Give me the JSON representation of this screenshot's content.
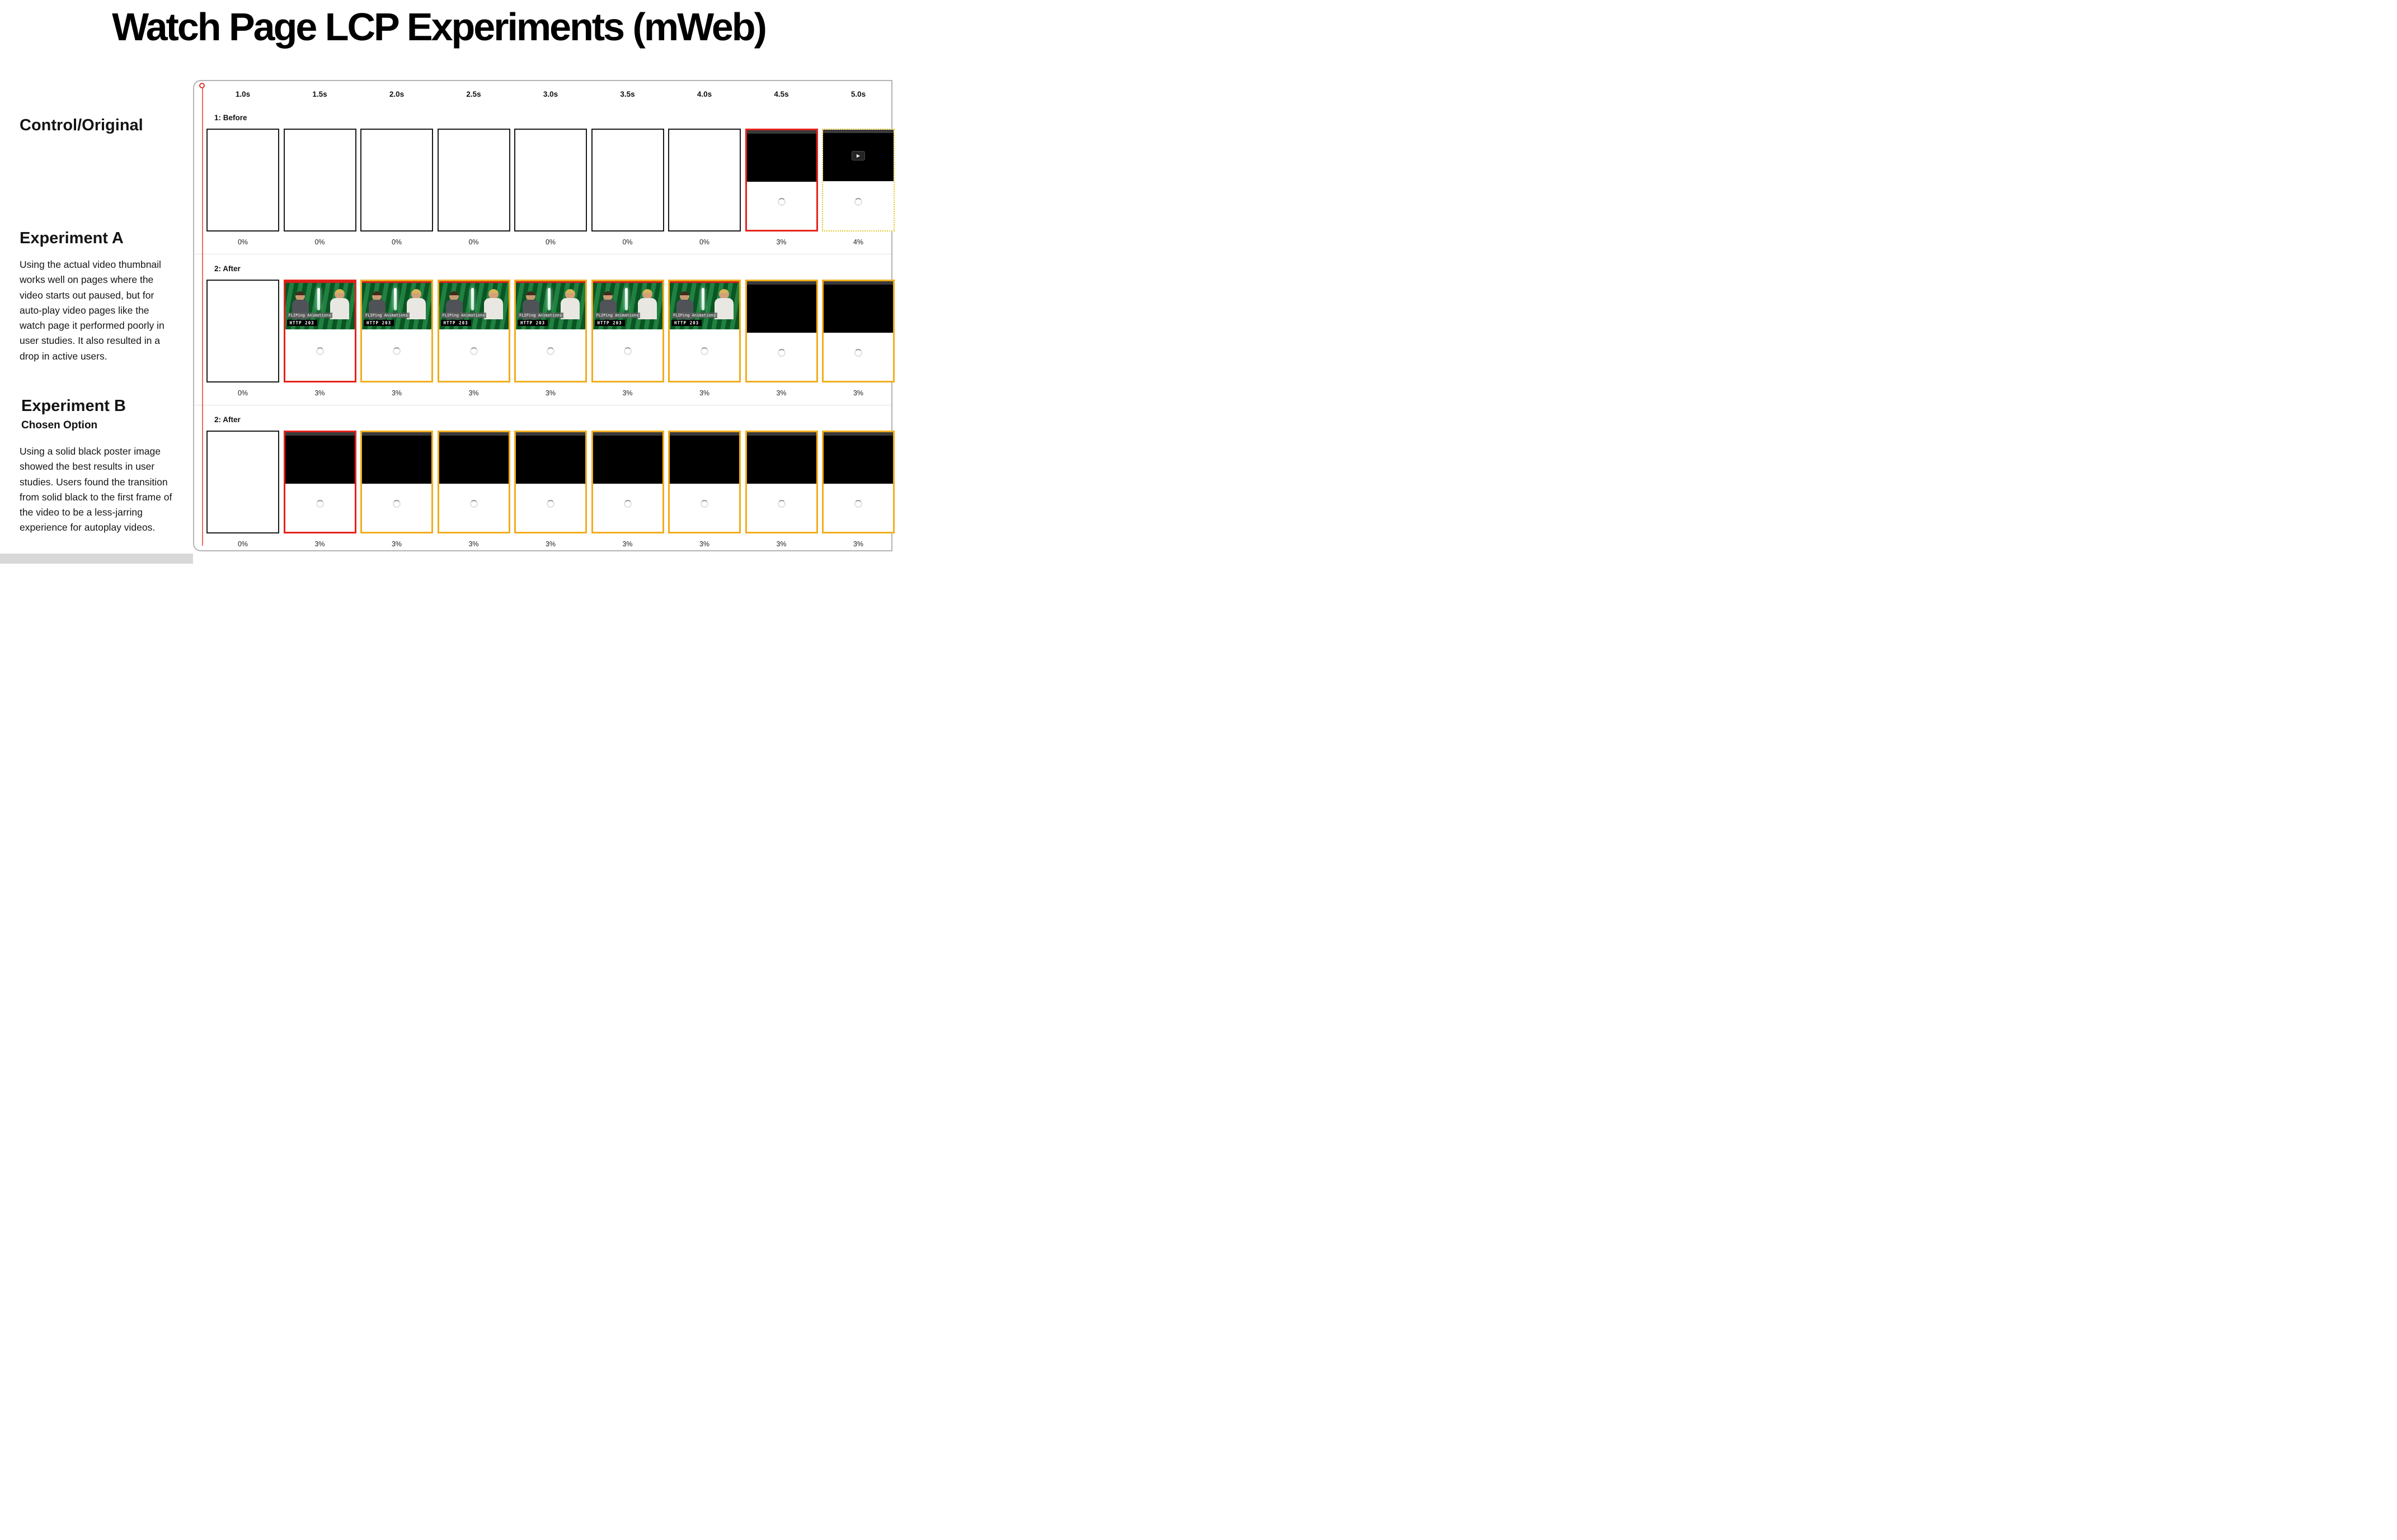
{
  "title": "Watch Page LCP Experiments (mWeb)",
  "sidebar": {
    "control_heading": "Control/Original",
    "experiment_a": {
      "heading": "Experiment A",
      "body": "Using the actual video thumbnail works well on pages where the video starts out paused, but for auto-play video pages like the watch page it performed poorly in user studies. It also resulted in a drop in active users."
    },
    "experiment_b": {
      "heading": "Experiment B",
      "subheading": "Chosen Option",
      "body": "Using a solid black poster image showed the best results in user studies. Users found the transition from solid black to the first frame of the video to be a less-jarring experience for autoplay videos."
    }
  },
  "thumbnail": {
    "line1": "FLIPing Animations",
    "line2": "HTTP 203",
    "play_icon": "▶"
  },
  "colors": {
    "frame_border_default": "#1a1a1a",
    "frame_border_lcp_candidate": "#e5231b",
    "frame_border_lcp_final": "#f0ad1e",
    "playhead": "#ef4136"
  },
  "filmstrip": {
    "times": [
      "1.0s",
      "1.5s",
      "2.0s",
      "2.5s",
      "3.0s",
      "3.5s",
      "4.0s",
      "4.5s",
      "5.0s"
    ],
    "rows": [
      {
        "label": "1: Before",
        "frames": [
          {
            "type": "blank",
            "border": "black",
            "percent": "0%"
          },
          {
            "type": "blank",
            "border": "black",
            "percent": "0%"
          },
          {
            "type": "blank",
            "border": "black",
            "percent": "0%"
          },
          {
            "type": "blank",
            "border": "black",
            "percent": "0%"
          },
          {
            "type": "blank",
            "border": "black",
            "percent": "0%"
          },
          {
            "type": "blank",
            "border": "black",
            "percent": "0%"
          },
          {
            "type": "blank",
            "border": "black",
            "percent": "0%"
          },
          {
            "type": "poster",
            "border": "red",
            "percent": "3%"
          },
          {
            "type": "poster-play",
            "border": "yellow-dotted",
            "percent": "4%"
          }
        ]
      },
      {
        "label": "2: After",
        "frames": [
          {
            "type": "blank",
            "border": "black",
            "percent": "0%"
          },
          {
            "type": "thumb",
            "border": "red",
            "percent": "3%"
          },
          {
            "type": "thumb",
            "border": "yellow",
            "percent": "3%"
          },
          {
            "type": "thumb",
            "border": "yellow",
            "percent": "3%"
          },
          {
            "type": "thumb",
            "border": "yellow",
            "percent": "3%"
          },
          {
            "type": "thumb",
            "border": "yellow",
            "percent": "3%"
          },
          {
            "type": "thumb",
            "border": "yellow",
            "percent": "3%"
          },
          {
            "type": "poster",
            "border": "yellow",
            "percent": "3%"
          },
          {
            "type": "poster",
            "border": "yellow",
            "percent": "3%"
          }
        ]
      },
      {
        "label": "2: After",
        "frames": [
          {
            "type": "blank",
            "border": "black",
            "percent": "0%"
          },
          {
            "type": "poster",
            "border": "red",
            "percent": "3%"
          },
          {
            "type": "poster",
            "border": "yellow",
            "percent": "3%"
          },
          {
            "type": "poster",
            "border": "yellow",
            "percent": "3%"
          },
          {
            "type": "poster",
            "border": "yellow",
            "percent": "3%"
          },
          {
            "type": "poster",
            "border": "yellow",
            "percent": "3%"
          },
          {
            "type": "poster",
            "border": "yellow",
            "percent": "3%"
          },
          {
            "type": "poster",
            "border": "yellow",
            "percent": "3%"
          },
          {
            "type": "poster",
            "border": "yellow",
            "percent": "3%"
          }
        ]
      }
    ]
  }
}
